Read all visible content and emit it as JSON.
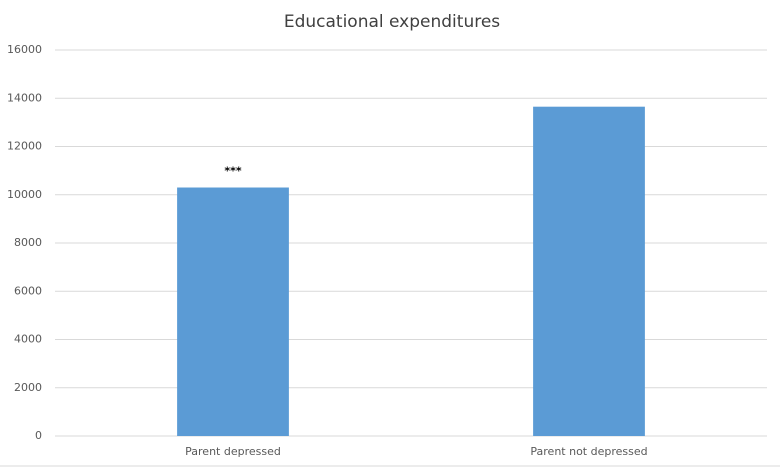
{
  "chart_data": {
    "type": "bar",
    "title": "Educational expenditures",
    "categories": [
      "Parent depressed",
      "Parent not depressed"
    ],
    "values": [
      10300,
      13650
    ],
    "color": "#5b9bd5",
    "annotations": [
      {
        "text": "***",
        "category": "Parent depressed"
      }
    ],
    "ylim": [
      0,
      16000
    ],
    "yticks": [
      0,
      2000,
      4000,
      6000,
      8000,
      10000,
      12000,
      14000,
      16000
    ],
    "grid": true
  }
}
